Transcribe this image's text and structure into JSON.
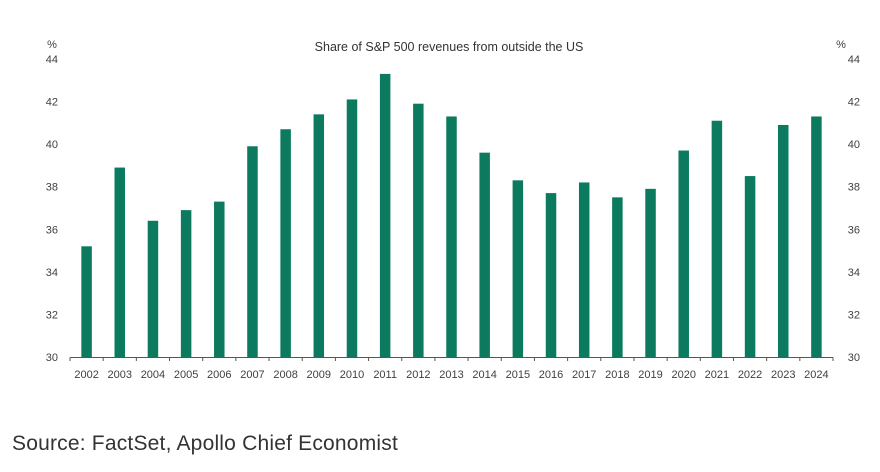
{
  "chart_data": {
    "type": "bar",
    "title": "Share of S&P 500 revenues from outside the US",
    "xlabel": "",
    "ylabel": "%",
    "ylabel_right": "%",
    "ylim": [
      30,
      44
    ],
    "yticks": [
      30,
      32,
      34,
      36,
      38,
      40,
      42,
      44
    ],
    "grid": false,
    "legend": "none",
    "bar_color": "#0b7a5e",
    "categories": [
      "2002",
      "2003",
      "2004",
      "2005",
      "2006",
      "2007",
      "2008",
      "2009",
      "2010",
      "2011",
      "2012",
      "2013",
      "2014",
      "2015",
      "2016",
      "2017",
      "2018",
      "2019",
      "2020",
      "2021",
      "2022",
      "2023",
      "2024"
    ],
    "series": [
      {
        "name": "Share of S&P 500 revenues from outside the US",
        "values": [
          35.2,
          38.9,
          36.4,
          36.9,
          37.3,
          39.9,
          40.7,
          41.4,
          42.1,
          43.3,
          41.9,
          41.3,
          39.6,
          38.3,
          37.7,
          38.2,
          37.5,
          37.9,
          39.7,
          41.1,
          38.5,
          40.9,
          41.3
        ]
      }
    ]
  },
  "source": "Source: FactSet, Apollo Chief Economist"
}
